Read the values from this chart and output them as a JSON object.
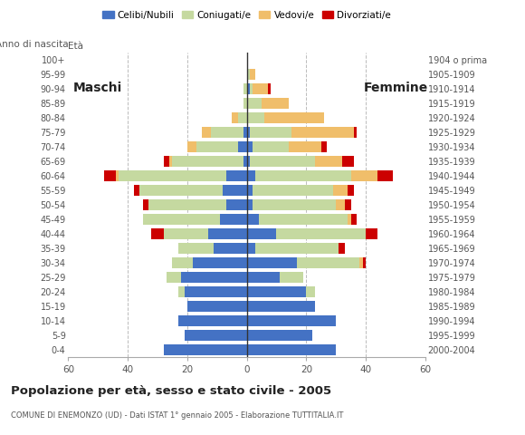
{
  "age_groups": [
    "0-4",
    "5-9",
    "10-14",
    "15-19",
    "20-24",
    "25-29",
    "30-34",
    "35-39",
    "40-44",
    "45-49",
    "50-54",
    "55-59",
    "60-64",
    "65-69",
    "70-74",
    "75-79",
    "80-84",
    "85-89",
    "90-94",
    "95-99",
    "100+"
  ],
  "birth_years": [
    "2000-2004",
    "1995-1999",
    "1990-1994",
    "1985-1989",
    "1980-1984",
    "1975-1979",
    "1970-1974",
    "1965-1969",
    "1960-1964",
    "1955-1959",
    "1950-1954",
    "1945-1949",
    "1940-1944",
    "1935-1939",
    "1930-1934",
    "1925-1929",
    "1920-1924",
    "1915-1919",
    "1910-1914",
    "1905-1909",
    "1904 o prima"
  ],
  "males": {
    "celibe": [
      28,
      21,
      23,
      20,
      21,
      22,
      18,
      11,
      13,
      9,
      7,
      8,
      7,
      1,
      3,
      1,
      0,
      0,
      0,
      0,
      0
    ],
    "coniugato": [
      0,
      0,
      0,
      0,
      2,
      5,
      7,
      12,
      15,
      26,
      26,
      28,
      36,
      24,
      14,
      11,
      3,
      1,
      1,
      0,
      0
    ],
    "vedovo": [
      0,
      0,
      0,
      0,
      0,
      0,
      0,
      0,
      0,
      0,
      0,
      0,
      1,
      1,
      3,
      3,
      2,
      0,
      0,
      0,
      0
    ],
    "divorziato": [
      0,
      0,
      0,
      0,
      0,
      0,
      0,
      0,
      4,
      0,
      2,
      2,
      4,
      2,
      0,
      0,
      0,
      0,
      0,
      0,
      0
    ]
  },
  "females": {
    "nubile": [
      30,
      22,
      30,
      23,
      20,
      11,
      17,
      3,
      10,
      4,
      2,
      2,
      3,
      1,
      2,
      1,
      0,
      0,
      1,
      0,
      0
    ],
    "coniugata": [
      0,
      0,
      0,
      0,
      3,
      8,
      21,
      28,
      30,
      30,
      28,
      27,
      32,
      22,
      12,
      14,
      6,
      5,
      1,
      1,
      0
    ],
    "vedova": [
      0,
      0,
      0,
      0,
      0,
      0,
      1,
      0,
      0,
      1,
      3,
      5,
      9,
      9,
      11,
      21,
      20,
      9,
      5,
      2,
      0
    ],
    "divorziata": [
      0,
      0,
      0,
      0,
      0,
      0,
      1,
      2,
      4,
      2,
      2,
      2,
      5,
      4,
      2,
      1,
      0,
      0,
      1,
      0,
      0
    ]
  },
  "colors": {
    "celibe": "#4472c4",
    "coniugato": "#c5d9a0",
    "vedovo": "#f0be6a",
    "divorziato": "#cc0000"
  },
  "title": "Popolazione per età, sesso e stato civile - 2005",
  "subtitle": "COMUNE DI ENEMONZO (UD) - Dati ISTAT 1° gennaio 2005 - Elaborazione TUTTITALIA.IT",
  "xlabel_left": "Maschi",
  "xlabel_right": "Femmine",
  "ylabel_left": "Età",
  "ylabel_right": "Anno di nascita",
  "xlim": 60,
  "legend_labels": [
    "Celibi/Nubili",
    "Coniugati/e",
    "Vedovi/e",
    "Divorziati/e"
  ],
  "background_color": "#ffffff",
  "bar_height": 0.75
}
